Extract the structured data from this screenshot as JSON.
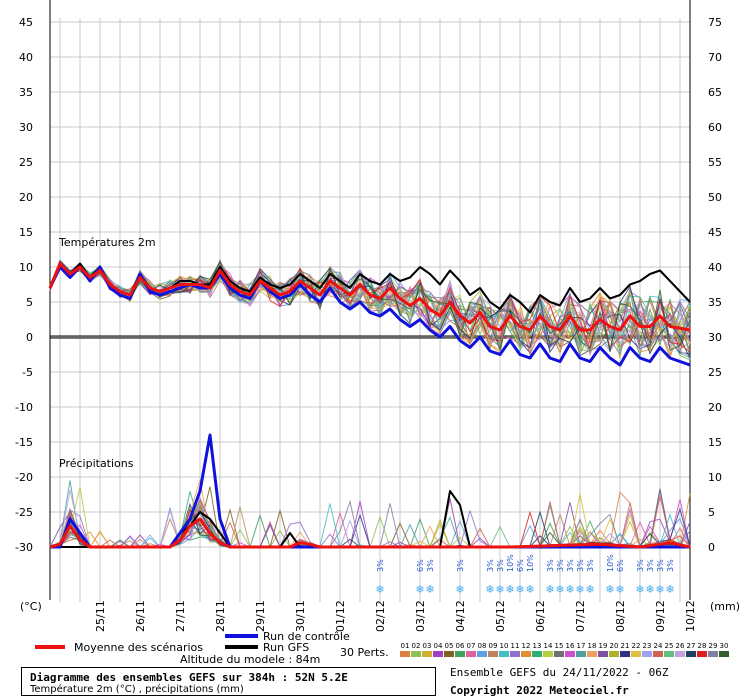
{
  "chart_data": {
    "type": "line",
    "section_labels": {
      "temperature": "Températures 2m",
      "precipitation": "Précipitations"
    },
    "unit_left": "(°C)",
    "unit_right": "(mm)",
    "temp_ylim": [
      -30,
      45
    ],
    "left_ticks": [
      "45",
      "40",
      "35",
      "30",
      "25",
      "20",
      "15",
      "10",
      "5",
      "0",
      "-5",
      "-10",
      "-15",
      "-20",
      "-25",
      "-30"
    ],
    "right_ticks": [
      "75",
      "70",
      "65",
      "60",
      "55",
      "50",
      "45",
      "40",
      "35",
      "30",
      "25",
      "20",
      "15",
      "10",
      "5",
      "0"
    ],
    "x_hours": [
      0,
      384
    ],
    "date_labels": [
      "25/11",
      "26/11",
      "27/11",
      "28/11",
      "29/11",
      "30/11",
      "01/12",
      "02/12",
      "03/12",
      "04/12",
      "05/12",
      "06/12",
      "07/12",
      "08/12",
      "09/12",
      "10/12"
    ],
    "date_hours": [
      30,
      54,
      78,
      102,
      126,
      150,
      174,
      198,
      222,
      246,
      270,
      294,
      318,
      342,
      366,
      384
    ],
    "snow_markers": [
      {
        "h": 198,
        "p": "3%"
      },
      {
        "h": 222,
        "p": "6%"
      },
      {
        "h": 228,
        "p": "3%"
      },
      {
        "h": 246,
        "p": "3%"
      },
      {
        "h": 264,
        "p": "3%"
      },
      {
        "h": 270,
        "p": "3%"
      },
      {
        "h": 276,
        "p": "10%"
      },
      {
        "h": 282,
        "p": "6%"
      },
      {
        "h": 288,
        "p": "10%"
      },
      {
        "h": 300,
        "p": "3%"
      },
      {
        "h": 306,
        "p": "3%"
      },
      {
        "h": 312,
        "p": "3%"
      },
      {
        "h": 318,
        "p": "3%"
      },
      {
        "h": 324,
        "p": "3%"
      },
      {
        "h": 336,
        "p": "10%"
      },
      {
        "h": 342,
        "p": "6%"
      },
      {
        "h": 354,
        "p": "3%"
      },
      {
        "h": 360,
        "p": "3%"
      },
      {
        "h": 366,
        "p": "3%"
      },
      {
        "h": 372,
        "p": "3%"
      }
    ],
    "series": [
      {
        "name": "Moyenne des scénarios",
        "color": "#ee1111",
        "temp": [
          [
            0,
            7
          ],
          [
            6,
            10.5
          ],
          [
            12,
            9
          ],
          [
            18,
            10
          ],
          [
            24,
            8.5
          ],
          [
            30,
            9.5
          ],
          [
            36,
            7.5
          ],
          [
            42,
            6.5
          ],
          [
            48,
            6
          ],
          [
            54,
            8.5
          ],
          [
            60,
            7
          ],
          [
            66,
            6.5
          ],
          [
            72,
            7
          ],
          [
            78,
            7.5
          ],
          [
            84,
            7.5
          ],
          [
            90,
            7.5
          ],
          [
            96,
            7
          ],
          [
            102,
            9.5
          ],
          [
            108,
            7.5
          ],
          [
            114,
            6.5
          ],
          [
            120,
            6
          ],
          [
            126,
            8
          ],
          [
            132,
            7
          ],
          [
            138,
            6
          ],
          [
            144,
            6.5
          ],
          [
            150,
            8
          ],
          [
            156,
            7
          ],
          [
            162,
            6
          ],
          [
            168,
            8
          ],
          [
            174,
            7
          ],
          [
            180,
            6
          ],
          [
            186,
            7.5
          ],
          [
            192,
            6
          ],
          [
            198,
            5.5
          ],
          [
            204,
            7
          ],
          [
            210,
            5.5
          ],
          [
            216,
            4.5
          ],
          [
            222,
            5.5
          ],
          [
            228,
            4
          ],
          [
            234,
            3
          ],
          [
            240,
            5
          ],
          [
            246,
            3
          ],
          [
            252,
            2
          ],
          [
            258,
            3.5
          ],
          [
            264,
            1.5
          ],
          [
            270,
            1
          ],
          [
            276,
            3
          ],
          [
            282,
            1.5
          ],
          [
            288,
            1
          ],
          [
            294,
            3
          ],
          [
            300,
            1.5
          ],
          [
            306,
            1
          ],
          [
            312,
            3
          ],
          [
            318,
            1
          ],
          [
            324,
            1
          ],
          [
            330,
            2.5
          ],
          [
            336,
            1.5
          ],
          [
            342,
            1
          ],
          [
            348,
            3
          ],
          [
            354,
            1.5
          ],
          [
            360,
            1.5
          ],
          [
            366,
            3
          ],
          [
            372,
            1.5
          ],
          [
            384,
            1
          ]
        ],
        "precip": [
          [
            0,
            0
          ],
          [
            6,
            0.2
          ],
          [
            12,
            1.5
          ],
          [
            18,
            0.5
          ],
          [
            24,
            0
          ],
          [
            48,
            0
          ],
          [
            72,
            0
          ],
          [
            78,
            0.5
          ],
          [
            84,
            1.5
          ],
          [
            90,
            2
          ],
          [
            96,
            1
          ],
          [
            102,
            0.3
          ],
          [
            108,
            0
          ],
          [
            144,
            0
          ],
          [
            150,
            0.3
          ],
          [
            156,
            0.2
          ],
          [
            162,
            0
          ],
          [
            198,
            0
          ],
          [
            276,
            0
          ],
          [
            330,
            0.2
          ],
          [
            342,
            0.1
          ],
          [
            354,
            0
          ],
          [
            372,
            0.3
          ],
          [
            384,
            0
          ]
        ]
      },
      {
        "name": "Run de contrôle",
        "color": "#1111dd",
        "temp": [
          [
            0,
            7
          ],
          [
            6,
            10
          ],
          [
            12,
            8.5
          ],
          [
            18,
            10
          ],
          [
            24,
            8
          ],
          [
            30,
            10
          ],
          [
            36,
            7
          ],
          [
            42,
            6
          ],
          [
            48,
            5.5
          ],
          [
            54,
            9
          ],
          [
            60,
            6.5
          ],
          [
            66,
            6
          ],
          [
            72,
            6.5
          ],
          [
            78,
            7
          ],
          [
            84,
            7.5
          ],
          [
            90,
            7
          ],
          [
            96,
            7
          ],
          [
            102,
            9
          ],
          [
            108,
            7
          ],
          [
            114,
            6
          ],
          [
            120,
            5.5
          ],
          [
            126,
            8
          ],
          [
            132,
            6.5
          ],
          [
            138,
            5.5
          ],
          [
            144,
            6
          ],
          [
            150,
            7.5
          ],
          [
            156,
            6
          ],
          [
            162,
            5
          ],
          [
            168,
            7
          ],
          [
            174,
            5
          ],
          [
            180,
            4
          ],
          [
            186,
            5
          ],
          [
            192,
            3.5
          ],
          [
            198,
            3
          ],
          [
            204,
            4
          ],
          [
            210,
            2.5
          ],
          [
            216,
            1.5
          ],
          [
            222,
            2.5
          ],
          [
            228,
            1
          ],
          [
            234,
            0
          ],
          [
            240,
            1.5
          ],
          [
            246,
            -0.5
          ],
          [
            252,
            -1.5
          ],
          [
            258,
            0
          ],
          [
            264,
            -2
          ],
          [
            270,
            -2.5
          ],
          [
            276,
            -0.5
          ],
          [
            282,
            -2.5
          ],
          [
            288,
            -3
          ],
          [
            294,
            -1
          ],
          [
            300,
            -3
          ],
          [
            306,
            -3.5
          ],
          [
            312,
            -1
          ],
          [
            318,
            -3
          ],
          [
            324,
            -3.5
          ],
          [
            330,
            -1.5
          ],
          [
            336,
            -3
          ],
          [
            342,
            -4
          ],
          [
            348,
            -1.5
          ],
          [
            354,
            -3
          ],
          [
            360,
            -3.5
          ],
          [
            366,
            -1.5
          ],
          [
            372,
            -3
          ],
          [
            384,
            -4
          ]
        ],
        "precip": [
          [
            0,
            0
          ],
          [
            6,
            0
          ],
          [
            12,
            2
          ],
          [
            18,
            1
          ],
          [
            24,
            0
          ],
          [
            72,
            0
          ],
          [
            84,
            2
          ],
          [
            90,
            4
          ],
          [
            96,
            8
          ],
          [
            102,
            2
          ],
          [
            108,
            0
          ],
          [
            384,
            0
          ]
        ]
      },
      {
        "name": "Run GFS",
        "color": "#000000",
        "temp": [
          [
            0,
            7
          ],
          [
            6,
            10.5
          ],
          [
            12,
            9
          ],
          [
            18,
            10.5
          ],
          [
            24,
            8.5
          ],
          [
            30,
            10
          ],
          [
            36,
            7.5
          ],
          [
            42,
            6.5
          ],
          [
            48,
            6
          ],
          [
            54,
            9
          ],
          [
            60,
            7
          ],
          [
            66,
            6.5
          ],
          [
            72,
            7
          ],
          [
            78,
            8
          ],
          [
            84,
            8
          ],
          [
            90,
            7.5
          ],
          [
            96,
            7.5
          ],
          [
            102,
            10
          ],
          [
            108,
            8
          ],
          [
            114,
            7
          ],
          [
            120,
            6.5
          ],
          [
            126,
            8.5
          ],
          [
            132,
            7.5
          ],
          [
            138,
            7
          ],
          [
            144,
            7.5
          ],
          [
            150,
            9
          ],
          [
            156,
            8
          ],
          [
            162,
            7
          ],
          [
            168,
            9
          ],
          [
            174,
            8
          ],
          [
            180,
            7
          ],
          [
            186,
            9
          ],
          [
            192,
            8
          ],
          [
            198,
            7.5
          ],
          [
            204,
            9
          ],
          [
            210,
            8
          ],
          [
            216,
            8.5
          ],
          [
            222,
            10
          ],
          [
            228,
            9
          ],
          [
            234,
            7.5
          ],
          [
            240,
            9.5
          ],
          [
            246,
            8
          ],
          [
            252,
            6
          ],
          [
            258,
            7
          ],
          [
            264,
            5
          ],
          [
            270,
            4
          ],
          [
            276,
            6
          ],
          [
            282,
            5
          ],
          [
            288,
            3.5
          ],
          [
            294,
            6
          ],
          [
            300,
            5
          ],
          [
            306,
            4.5
          ],
          [
            312,
            7
          ],
          [
            318,
            5
          ],
          [
            324,
            5.5
          ],
          [
            330,
            7
          ],
          [
            336,
            5.5
          ],
          [
            342,
            6
          ],
          [
            348,
            7.5
          ],
          [
            354,
            8
          ],
          [
            360,
            9
          ],
          [
            366,
            9.5
          ],
          [
            372,
            8
          ],
          [
            384,
            5
          ]
        ],
        "precip": [
          [
            0,
            0
          ],
          [
            60,
            0
          ],
          [
            72,
            0
          ],
          [
            78,
            1
          ],
          [
            84,
            1.5
          ],
          [
            90,
            2.5
          ],
          [
            96,
            2
          ],
          [
            102,
            1
          ],
          [
            108,
            0
          ],
          [
            138,
            0
          ],
          [
            144,
            1
          ],
          [
            150,
            0
          ],
          [
            234,
            0
          ],
          [
            240,
            4
          ],
          [
            246,
            3
          ],
          [
            252,
            0
          ],
          [
            384,
            0
          ]
        ]
      }
    ],
    "legend_items": {
      "mean": "Moyenne des scénarios",
      "control": "Run de contrôle",
      "gfs": "Run GFS",
      "perts": "30 Perts."
    },
    "pert_numbers": [
      "01",
      "02",
      "03",
      "04",
      "05",
      "06",
      "07",
      "08",
      "09",
      "10",
      "11",
      "12",
      "13",
      "14",
      "15",
      "16",
      "17",
      "18",
      "19",
      "20",
      "21",
      "22",
      "23",
      "24",
      "25",
      "26",
      "27",
      "28",
      "29",
      "30"
    ],
    "pert_colors": [
      "#e08040",
      "#90c050",
      "#d0b030",
      "#a040c0",
      "#806020",
      "#40a060",
      "#e060a0",
      "#60a0e0",
      "#c08060",
      "#40c0c0",
      "#9070d0",
      "#e09030",
      "#30b070",
      "#b0d040",
      "#707070",
      "#d050d0",
      "#50a0a0",
      "#f0a060",
      "#8050a0",
      "#b0b030",
      "#303080",
      "#e0c040",
      "#a0a0f0",
      "#d06050",
      "#60c080",
      "#c0a0e0",
      "#204060",
      "#e02020",
      "#8080a0",
      "#306030"
    ],
    "altitude": "Altitude du modele : 84m",
    "info_title": "Diagramme des ensembles GEFS sur 384h : 52N 5.2E",
    "info_subtitle": "Température 2m (°C) , précipitations (mm)",
    "run_info": "Ensemble GEFS du 24/11/2022 - 06Z",
    "copyright": "Copyright 2022 Meteociel.fr"
  }
}
